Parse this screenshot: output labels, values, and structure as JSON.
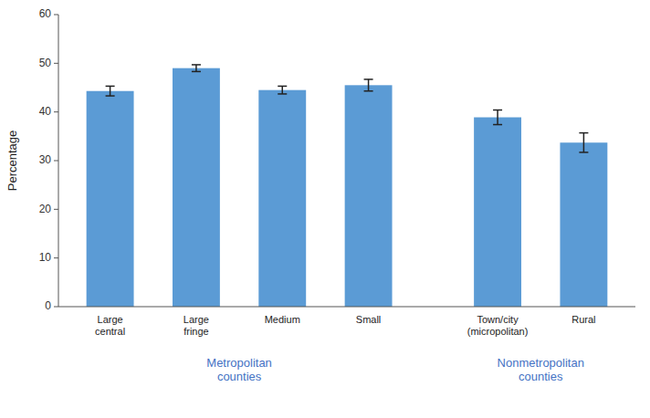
{
  "chart_data": {
    "type": "bar",
    "categories": [
      "Large\ncentral",
      "Large\nfringe",
      "Medium",
      "Small",
      "Town/city\n(micropolitan)",
      "Rural"
    ],
    "values": [
      44.3,
      49.0,
      44.5,
      45.5,
      38.9,
      33.7
    ],
    "errors": [
      1.0,
      0.7,
      0.8,
      1.2,
      1.5,
      2.0
    ],
    "color": "#5b9bd5",
    "y_label": "Percentage",
    "ylim": [
      0,
      60
    ],
    "yticks": [
      0,
      10,
      20,
      30,
      40,
      50,
      60
    ],
    "grid": false,
    "annotations": [
      {
        "text": "Metropolitan\ncounties",
        "color": "#4472c4"
      },
      {
        "text": "Nonmetropolitan\ncounties",
        "color": "#4472c4"
      }
    ]
  }
}
